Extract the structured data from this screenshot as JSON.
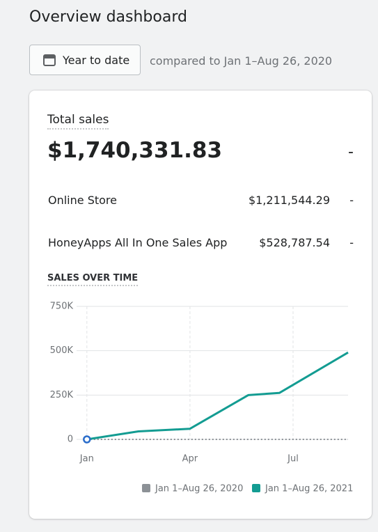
{
  "page": {
    "title": "Overview dashboard",
    "date_button": "Year to date",
    "comparison": "compared to Jan 1–Aug 26, 2020"
  },
  "card": {
    "title": "Total sales",
    "total": "$1,740,331.83",
    "total_change": "-",
    "rows": [
      {
        "label": "Online Store",
        "value": "$1,211,544.29",
        "change": "-"
      },
      {
        "label": "HoneyApps All In One Sales App",
        "value": "$528,787.54",
        "change": "-"
      }
    ],
    "chart_title": "SALES OVER TIME"
  },
  "chart_data": {
    "type": "line",
    "x": [
      0,
      1.5,
      3,
      4.7,
      5.6,
      7.6
    ],
    "xlim": [
      -0.3,
      7.6
    ],
    "xticks": [
      {
        "value": 0,
        "label": "Jan"
      },
      {
        "value": 3,
        "label": "Apr"
      },
      {
        "value": 6,
        "label": "Jul"
      }
    ],
    "ylim": [
      0,
      750000
    ],
    "yticks": [
      0,
      {
        "value": 250000,
        "label": "250K"
      },
      {
        "value": 500000,
        "label": "500K"
      },
      {
        "value": 750000,
        "label": "750K"
      }
    ],
    "grid": true,
    "series": [
      {
        "name": "Jan 1–Aug 26, 2020",
        "color": "#8c9196",
        "values": [
          0,
          0,
          0,
          0,
          0,
          0
        ]
      },
      {
        "name": "Jan 1–Aug 26, 2021",
        "color": "#139c92",
        "values": [
          0,
          45000,
          60000,
          250000,
          262000,
          490000
        ]
      }
    ]
  }
}
